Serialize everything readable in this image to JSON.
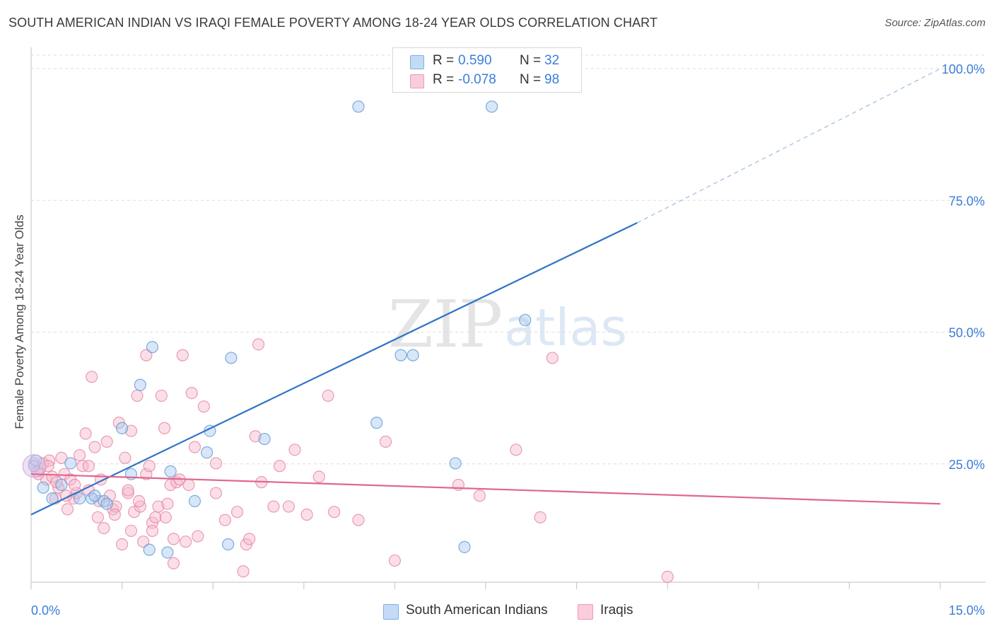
{
  "header": {
    "title": "SOUTH AMERICAN INDIAN VS IRAQI FEMALE POVERTY AMONG 18-24 YEAR OLDS CORRELATION CHART",
    "source": "Source: ZipAtlas.com"
  },
  "legend": {
    "series1": {
      "r_label": "R =",
      "r_value": "0.590",
      "n_label": "N =",
      "n_value": "32"
    },
    "series2": {
      "r_label": "R =",
      "r_value": "-0.078",
      "n_label": "N =",
      "n_value": "98"
    }
  },
  "bottom_legend": {
    "series1": "South American Indians",
    "series2": "Iraqis"
  },
  "watermark": {
    "zip": "ZIP",
    "atlas": "atlas"
  },
  "colors": {
    "blue_fill": "#a9c8f0",
    "blue_stroke": "#5b9bd5",
    "blue_line": "#2f73c8",
    "pink_fill": "#f5b8cb",
    "pink_stroke": "#e8839f",
    "pink_line": "#e0668f",
    "tick_label": "#3b7dd8",
    "grid": "#dedede"
  },
  "chart_data": {
    "type": "scatter",
    "title": "SOUTH AMERICAN INDIAN VS IRAQI FEMALE POVERTY AMONG 18-24 YEAR OLDS CORRELATION CHART",
    "xlabel": "",
    "ylabel": "Female Poverty Among 18-24 Year Olds",
    "xlim": [
      0,
      15
    ],
    "ylim": [
      0,
      100
    ],
    "x_tick_labels": [
      "0.0%",
      "15.0%"
    ],
    "y_ticks": [
      25,
      50,
      75,
      100
    ],
    "y_tick_labels": [
      "25.0%",
      "50.0%",
      "75.0%",
      "100.0%"
    ],
    "grid": true,
    "series": [
      {
        "name": "South American Indians",
        "color": "#a9c8f0",
        "points": [
          [
            0.05,
            21.5
          ],
          [
            0.2,
            17.5
          ],
          [
            0.35,
            15.5
          ],
          [
            0.5,
            18.0
          ],
          [
            0.65,
            22.0
          ],
          [
            0.8,
            15.5
          ],
          [
            1.0,
            15.5
          ],
          [
            1.05,
            16.0
          ],
          [
            1.2,
            15.0
          ],
          [
            1.25,
            14.5
          ],
          [
            1.5,
            28.5
          ],
          [
            1.65,
            20.0
          ],
          [
            1.8,
            36.5
          ],
          [
            1.95,
            6.0
          ],
          [
            2.0,
            43.5
          ],
          [
            2.25,
            5.5
          ],
          [
            2.3,
            20.5
          ],
          [
            2.7,
            15.0
          ],
          [
            2.9,
            24.0
          ],
          [
            2.95,
            28.0
          ],
          [
            3.25,
            7.0
          ],
          [
            3.3,
            41.5
          ],
          [
            3.85,
            26.5
          ],
          [
            5.4,
            88.0
          ],
          [
            5.7,
            29.5
          ],
          [
            6.1,
            42.0
          ],
          [
            6.3,
            42.0
          ],
          [
            7.0,
            22.0
          ],
          [
            7.15,
            6.5
          ],
          [
            7.6,
            88.0
          ],
          [
            8.15,
            48.5
          ],
          [
            0.08,
            22.5
          ]
        ],
        "trend": {
          "x": [
            0,
            10.0
          ],
          "y": [
            12.5,
            66.5
          ],
          "dashed_to": {
            "x": 15.0,
            "y": 95.0
          }
        }
      },
      {
        "name": "Iraqis",
        "color": "#f5b8cb",
        "points": [
          [
            0.05,
            22.0
          ],
          [
            0.1,
            20.5
          ],
          [
            0.15,
            21.0
          ],
          [
            0.2,
            22.0
          ],
          [
            0.25,
            19.0
          ],
          [
            0.3,
            22.5
          ],
          [
            0.35,
            19.5
          ],
          [
            0.4,
            15.5
          ],
          [
            0.45,
            17.5
          ],
          [
            0.5,
            23.0
          ],
          [
            0.55,
            20.0
          ],
          [
            0.6,
            13.5
          ],
          [
            0.65,
            19.0
          ],
          [
            0.7,
            15.5
          ],
          [
            0.75,
            16.5
          ],
          [
            0.8,
            23.5
          ],
          [
            0.85,
            21.5
          ],
          [
            0.9,
            27.5
          ],
          [
            0.95,
            21.5
          ],
          [
            0.95,
            17.0
          ],
          [
            1.0,
            38.0
          ],
          [
            1.05,
            25.0
          ],
          [
            1.1,
            12.0
          ],
          [
            1.15,
            19.0
          ],
          [
            1.2,
            10.0
          ],
          [
            1.25,
            26.0
          ],
          [
            1.3,
            16.0
          ],
          [
            1.35,
            13.5
          ],
          [
            1.4,
            14.0
          ],
          [
            1.45,
            29.5
          ],
          [
            1.5,
            7.0
          ],
          [
            1.55,
            23.0
          ],
          [
            1.6,
            16.5
          ],
          [
            1.6,
            17.0
          ],
          [
            1.65,
            9.5
          ],
          [
            1.65,
            28.0
          ],
          [
            1.7,
            13.0
          ],
          [
            1.75,
            34.5
          ],
          [
            1.8,
            14.0
          ],
          [
            1.85,
            7.5
          ],
          [
            1.9,
            42.0
          ],
          [
            1.9,
            20.0
          ],
          [
            1.95,
            21.5
          ],
          [
            2.0,
            11.0
          ],
          [
            2.0,
            9.5
          ],
          [
            2.05,
            12.0
          ],
          [
            2.1,
            14.0
          ],
          [
            2.15,
            34.5
          ],
          [
            2.2,
            28.5
          ],
          [
            2.25,
            14.5
          ],
          [
            2.3,
            18.0
          ],
          [
            2.35,
            8.0
          ],
          [
            2.35,
            3.5
          ],
          [
            2.4,
            18.5
          ],
          [
            2.45,
            19.0
          ],
          [
            2.5,
            42.0
          ],
          [
            2.55,
            7.5
          ],
          [
            2.6,
            18.0
          ],
          [
            2.65,
            35.0
          ],
          [
            2.7,
            25.0
          ],
          [
            2.75,
            8.5
          ],
          [
            2.85,
            32.5
          ],
          [
            3.05,
            22.0
          ],
          [
            3.05,
            16.5
          ],
          [
            3.2,
            11.5
          ],
          [
            3.5,
            2.0
          ],
          [
            3.55,
            7.0
          ],
          [
            3.6,
            8.0
          ],
          [
            3.7,
            27.0
          ],
          [
            3.75,
            44.0
          ],
          [
            3.8,
            18.5
          ],
          [
            4.0,
            14.0
          ],
          [
            4.1,
            21.5
          ],
          [
            4.25,
            14.0
          ],
          [
            4.35,
            24.5
          ],
          [
            4.55,
            12.5
          ],
          [
            4.75,
            19.5
          ],
          [
            4.9,
            34.5
          ],
          [
            5.0,
            13.0
          ],
          [
            5.4,
            11.5
          ],
          [
            5.85,
            26.0
          ],
          [
            6.0,
            4.0
          ],
          [
            7.05,
            18.0
          ],
          [
            7.4,
            16.0
          ],
          [
            8.0,
            24.5
          ],
          [
            8.4,
            12.0
          ],
          [
            8.6,
            41.5
          ],
          [
            10.5,
            1.0
          ],
          [
            0.12,
            20.0
          ],
          [
            0.28,
            21.5
          ],
          [
            0.42,
            18.5
          ],
          [
            0.58,
            16.0
          ],
          [
            0.72,
            18.0
          ],
          [
            1.12,
            15.0
          ],
          [
            1.38,
            12.5
          ],
          [
            1.78,
            15.0
          ],
          [
            2.22,
            12.0
          ],
          [
            3.4,
            13.0
          ]
        ],
        "trend": {
          "x": [
            0,
            15.0
          ],
          "y": [
            20.0,
            14.5
          ]
        }
      }
    ]
  }
}
